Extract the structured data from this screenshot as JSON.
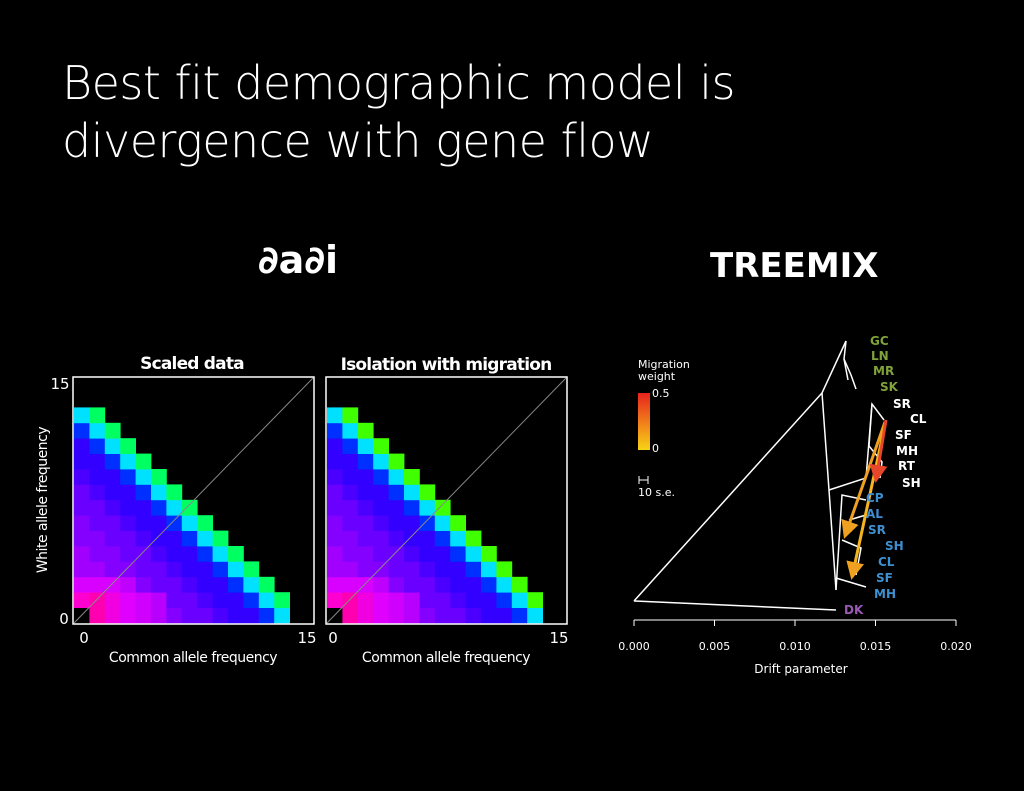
{
  "slide": {
    "title_line1": "Best fit demographic model is",
    "title_line2": "divergence with gene flow"
  },
  "dadi": {
    "heading": "∂a∂i",
    "panel_left_title": "Scaled data",
    "panel_right_title": "Isolation with migration",
    "y_axis_label": "White allele frequency",
    "x_axis_label": "Common allele frequency",
    "ticks": {
      "min": "0",
      "max": "15"
    },
    "colormap": [
      "#0000ff",
      "#3300ff",
      "#6a00ff",
      "#a100ff",
      "#d800ff",
      "#ff00ea",
      "#ff00a0",
      "#ff0044",
      "#ff2000",
      "#ff6a00",
      "#ffaa00",
      "#ffe600",
      "#c0ff00",
      "#70ff00",
      "#00ff30",
      "#00ffa0",
      "#00f2ff",
      "#00a8ff",
      "#0055ff",
      "#0000e0"
    ]
  },
  "treemix": {
    "heading": "TREEMIX",
    "legend_title_line1": "Migration",
    "legend_title_line2": "weight",
    "legend_high": "0.5",
    "legend_low": "0",
    "scale_bar_label": "10 s.e.",
    "x_axis_label": "Drift parameter",
    "x_ticks": [
      "0.000",
      "0.005",
      "0.010",
      "0.015",
      "0.020"
    ],
    "colors": {
      "green": "#7fa23a",
      "white": "#ffffff",
      "blue": "#3e8fd0",
      "purple": "#9b59b6",
      "migration_high": "#e8231f",
      "migration_low": "#f7d415"
    },
    "leaves": [
      {
        "label": "GC",
        "group": "green"
      },
      {
        "label": "LN",
        "group": "green"
      },
      {
        "label": "MR",
        "group": "green"
      },
      {
        "label": "SK",
        "group": "green"
      },
      {
        "label": "SR",
        "group": "white"
      },
      {
        "label": "CL",
        "group": "white"
      },
      {
        "label": "SF",
        "group": "white"
      },
      {
        "label": "MH",
        "group": "white"
      },
      {
        "label": "RT",
        "group": "white"
      },
      {
        "label": "SH",
        "group": "white"
      },
      {
        "label": "CP",
        "group": "blue"
      },
      {
        "label": "AL",
        "group": "blue"
      },
      {
        "label": "SR",
        "group": "blue"
      },
      {
        "label": "SH",
        "group": "blue"
      },
      {
        "label": "CL",
        "group": "blue"
      },
      {
        "label": "SF",
        "group": "blue"
      },
      {
        "label": "MH",
        "group": "blue"
      },
      {
        "label": "DK",
        "group": "purple"
      }
    ]
  }
}
